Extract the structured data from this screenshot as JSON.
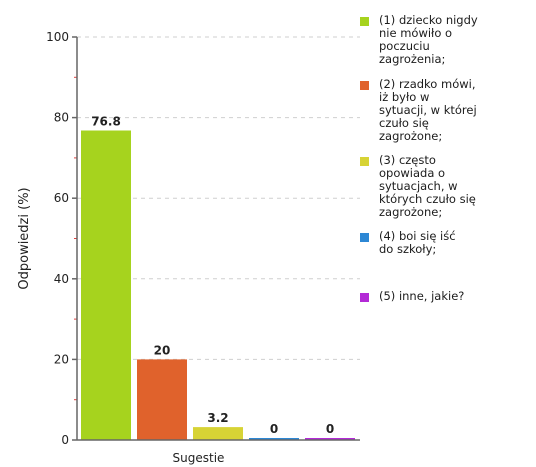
{
  "chart_data": {
    "type": "bar",
    "xlabel": "Sugestie",
    "ylabel": "Odpowiedzi (%)",
    "ylim": [
      0,
      100
    ],
    "yticks": [
      0,
      20,
      40,
      60,
      80,
      100
    ],
    "grid": true,
    "legend_position": "right",
    "series": [
      {
        "name": "(1) dziecko nigdy\nnie mówiło o\npoczuciu\nzagrożenia;",
        "value": 76.8,
        "label": "76.8",
        "color": "#a6d31e"
      },
      {
        "name": "(2) rzadko mówi,\niż było w\nsytuacji, w której\nczuło się\nzagrożone;",
        "value": 20,
        "label": "20",
        "color": "#e0622c"
      },
      {
        "name": "(3) często\nopowiada o\nsytuacjach, w\nktórych czuło się\nzagrożone;",
        "value": 3.2,
        "label": "3.2",
        "color": "#d7d335"
      },
      {
        "name": "(4) boi się iść\ndo szkoły;",
        "value": 0,
        "label": "0",
        "color": "#2d87d4"
      },
      {
        "name": "(5) inne, jakie?",
        "value": 0,
        "label": "0",
        "color": "#b32ad6"
      }
    ]
  }
}
